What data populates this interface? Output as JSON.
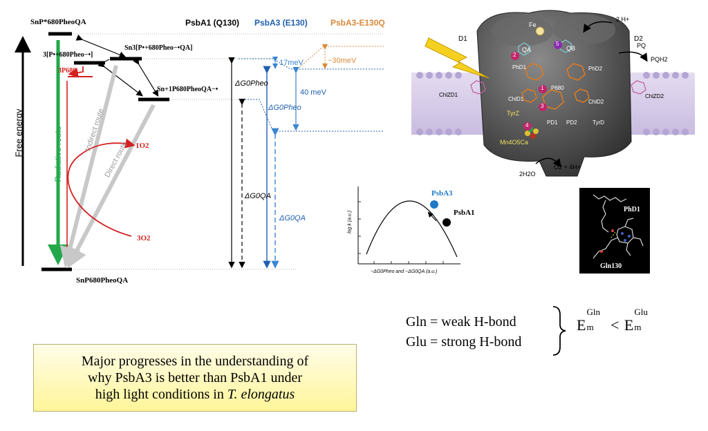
{
  "energy_diagram": {
    "y_axis_label": "Free energy",
    "headers": {
      "psba1": "PsbA1 (Q130)",
      "psba3": "PsbA3 (E130)",
      "psba3_mut": "PsbA3-E130Q"
    },
    "states": {
      "top": "SnP*680PheoQA",
      "radical_pair_1": "3[P•+680Pheo−•]",
      "triplet_p680": "3P680",
      "radical_pair_2": "Sn3[P•+680Pheo−•QA]",
      "charge_separated": "Sn+1P680PheoQA−•",
      "ground": "SnP680PheoQA"
    },
    "routes": {
      "radiative": "Radiative route",
      "indirect": "Indirect route",
      "direct": "Direct route"
    },
    "singlet_oxygen": "1O2",
    "triplet_oxygen": "3O2",
    "energies": {
      "gap_17": "17meV",
      "gap_30": "~30meV",
      "gap_40": "40 meV",
      "dg_pheo_black": "ΔG0Pheo",
      "dg_pheo_blue": "ΔG0Pheo",
      "dg_qa_black": "ΔG0QA",
      "dg_qa_blue": "ΔG0QA"
    },
    "colors": {
      "psba1": "#000000",
      "psba3": "#1f5fb0",
      "psba3_mut": "#d98a3a",
      "oxygen": "#d42020",
      "radiative": "#22a84a"
    }
  },
  "psii_panel": {
    "labels": {
      "d1": "D1",
      "d2": "D2",
      "fe": "Fe",
      "h_in": "2 H+",
      "qa": "QA",
      "qb": "QB",
      "pq": "PQ",
      "pqh2": "PQH2",
      "ph_d1": "PhD1",
      "ph_d2": "PhD2",
      "chlz_d1": "ChlZD1",
      "chlz_d2": "ChlZD2",
      "chl_d1": "ChlD1",
      "chl_d2": "ChlD2",
      "p680": "P680",
      "tyr_z": "TyrZ",
      "tyr_d": "TyrD",
      "p_d1": "PD1",
      "p_d2": "PD2",
      "mn_cluster": "Mn4O5Ca",
      "water": "2H2O",
      "o2_out": "O2 + 4H+",
      "step_1": "1",
      "step_2": "2",
      "step_3": "3",
      "step_4": "4",
      "step_5": "5"
    }
  },
  "rate_plot": {
    "ylabel": "log k (a.u.)",
    "xlabel": "−ΔG0Pheo and −ΔG0QA (a.u.)",
    "points": [
      {
        "name": "PsbA3",
        "color": "#1f7ac8"
      },
      {
        "name": "PsbA1",
        "color": "#000000"
      }
    ]
  },
  "structure_panel": {
    "ph_label": "PhD1",
    "residue_label": "Gln130"
  },
  "hbond": {
    "gln": "Gln = weak H-bond",
    "glu": "Glu = strong H-bond",
    "em": "E",
    "sub": "m",
    "sup_gln": "Gln",
    "sup_glu": "Glu",
    "lt": "<"
  },
  "summary": {
    "line1": "Major progresses in the understanding of",
    "line2": "why PsbA3 is better than PsbA1 under",
    "line3_pre": "high light conditions in ",
    "line3_em": "T. elongatus"
  }
}
